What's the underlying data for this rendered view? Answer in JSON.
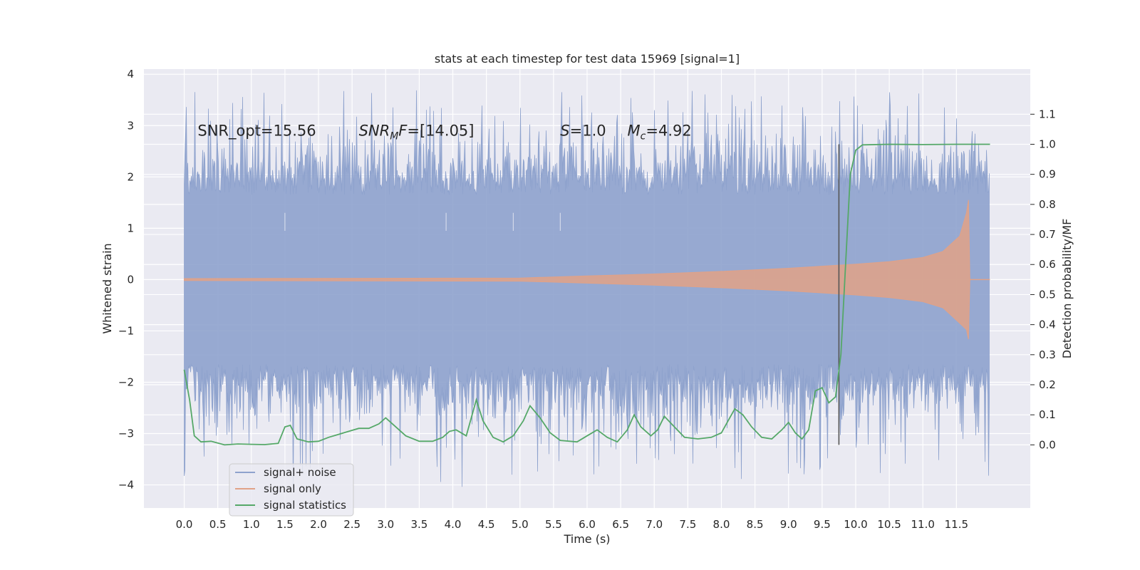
{
  "chart_data": {
    "type": "line",
    "title": "stats at each timestep for test data 15969 [signal=1]",
    "xlabel": "Time (s)",
    "ylabel": "Whitened strain",
    "y2label": "Detection probability/MF",
    "xlim": [
      -0.6,
      12.6
    ],
    "ylim": [
      -4.45,
      4.1
    ],
    "y2lim": [
      -0.21,
      1.25
    ],
    "xticks": [
      0.0,
      0.5,
      1.0,
      1.5,
      2.0,
      2.5,
      3.0,
      3.5,
      4.0,
      4.5,
      5.0,
      5.5,
      6.0,
      6.5,
      7.0,
      7.5,
      8.0,
      8.5,
      9.0,
      9.5,
      10.0,
      10.5,
      11.0,
      11.5
    ],
    "xtick_labels": [
      "0.0",
      "0.5",
      "1.0",
      "1.5",
      "2.0",
      "2.5",
      "3.0",
      "3.5",
      "4.0",
      "4.5",
      "5.0",
      "5.5",
      "6.0",
      "6.5",
      "7.0",
      "7.5",
      "8.0",
      "8.5",
      "9.0",
      "9.5",
      "10.0",
      "10.5",
      "11.0",
      "11.5"
    ],
    "yticks": [
      -4,
      -3,
      -2,
      -1,
      0,
      1,
      2,
      3,
      4
    ],
    "ytick_labels": [
      "−4",
      "−3",
      "−2",
      "−1",
      "0",
      "1",
      "2",
      "3",
      "4"
    ],
    "y2ticks": [
      0.0,
      0.1,
      0.2,
      0.3,
      0.4,
      0.5,
      0.6,
      0.7,
      0.8,
      0.9,
      1.0,
      1.1
    ],
    "y2tick_labels": [
      "0.0",
      "0.1",
      "0.2",
      "0.3",
      "0.4",
      "0.5",
      "0.6",
      "0.7",
      "0.8",
      "0.9",
      "1.0",
      "1.1"
    ],
    "grid": true,
    "legend_position": "bottom-left",
    "annotations": {
      "snr_opt": "SNR_opt=15.56",
      "snr_mf_main": "SNR",
      "snr_mf_sub": "M",
      "snr_mf_rest": "F=[14.05]",
      "s_main": "S",
      "s_rest": "=1.0",
      "mc_main": "M",
      "mc_sub": "c",
      "mc_rest": "=4.92"
    },
    "vertical_line_x": 9.75,
    "series": [
      {
        "name": "signal+ noise",
        "color": "#8ea2cd",
        "x_range": [
          0.0,
          12.0
        ],
        "envelope_typical": 1.65,
        "envelope_peak": 3.7,
        "envelope_min": -4.1
      },
      {
        "name": "signal only",
        "color": "#e1a287",
        "envelope": [
          [
            0.0,
            0.02
          ],
          [
            5.0,
            0.03
          ],
          [
            6.0,
            0.07
          ],
          [
            7.0,
            0.11
          ],
          [
            8.0,
            0.16
          ],
          [
            9.0,
            0.22
          ],
          [
            10.0,
            0.3
          ],
          [
            10.5,
            0.35
          ],
          [
            11.0,
            0.43
          ],
          [
            11.3,
            0.55
          ],
          [
            11.55,
            0.85
          ],
          [
            11.65,
            1.3
          ],
          [
            11.68,
            1.55
          ],
          [
            11.7,
            0.0
          ]
        ]
      },
      {
        "name": "signal statistics",
        "color": "#55a868",
        "axis": "right",
        "points": [
          [
            0.0,
            0.25
          ],
          [
            0.08,
            0.15
          ],
          [
            0.15,
            0.03
          ],
          [
            0.25,
            0.01
          ],
          [
            0.4,
            0.012
          ],
          [
            0.6,
            0.0
          ],
          [
            0.8,
            0.003
          ],
          [
            1.0,
            0.002
          ],
          [
            1.2,
            0.001
          ],
          [
            1.4,
            0.005
          ],
          [
            1.5,
            0.06
          ],
          [
            1.58,
            0.065
          ],
          [
            1.68,
            0.02
          ],
          [
            1.85,
            0.01
          ],
          [
            2.0,
            0.012
          ],
          [
            2.15,
            0.025
          ],
          [
            2.3,
            0.035
          ],
          [
            2.45,
            0.045
          ],
          [
            2.6,
            0.055
          ],
          [
            2.75,
            0.055
          ],
          [
            2.9,
            0.07
          ],
          [
            3.0,
            0.09
          ],
          [
            3.15,
            0.06
          ],
          [
            3.3,
            0.03
          ],
          [
            3.5,
            0.012
          ],
          [
            3.7,
            0.012
          ],
          [
            3.85,
            0.025
          ],
          [
            3.95,
            0.045
          ],
          [
            4.05,
            0.05
          ],
          [
            4.2,
            0.03
          ],
          [
            4.35,
            0.15
          ],
          [
            4.45,
            0.08
          ],
          [
            4.6,
            0.025
          ],
          [
            4.75,
            0.01
          ],
          [
            4.9,
            0.03
          ],
          [
            5.05,
            0.08
          ],
          [
            5.15,
            0.13
          ],
          [
            5.3,
            0.09
          ],
          [
            5.45,
            0.04
          ],
          [
            5.6,
            0.015
          ],
          [
            5.85,
            0.01
          ],
          [
            6.0,
            0.03
          ],
          [
            6.15,
            0.05
          ],
          [
            6.3,
            0.025
          ],
          [
            6.45,
            0.01
          ],
          [
            6.6,
            0.05
          ],
          [
            6.7,
            0.1
          ],
          [
            6.8,
            0.06
          ],
          [
            6.95,
            0.03
          ],
          [
            7.05,
            0.05
          ],
          [
            7.15,
            0.095
          ],
          [
            7.3,
            0.06
          ],
          [
            7.45,
            0.025
          ],
          [
            7.65,
            0.02
          ],
          [
            7.85,
            0.025
          ],
          [
            8.0,
            0.04
          ],
          [
            8.1,
            0.08
          ],
          [
            8.2,
            0.12
          ],
          [
            8.32,
            0.1
          ],
          [
            8.45,
            0.06
          ],
          [
            8.6,
            0.025
          ],
          [
            8.75,
            0.02
          ],
          [
            8.9,
            0.05
          ],
          [
            9.0,
            0.075
          ],
          [
            9.1,
            0.04
          ],
          [
            9.2,
            0.02
          ],
          [
            9.3,
            0.05
          ],
          [
            9.4,
            0.18
          ],
          [
            9.5,
            0.19
          ],
          [
            9.6,
            0.14
          ],
          [
            9.7,
            0.16
          ],
          [
            9.78,
            0.3
          ],
          [
            9.85,
            0.6
          ],
          [
            9.92,
            0.9
          ],
          [
            10.0,
            0.98
          ],
          [
            10.1,
            0.998
          ],
          [
            10.5,
            1.0
          ],
          [
            11.0,
            0.999
          ],
          [
            11.5,
            1.0
          ],
          [
            12.0,
            1.0
          ]
        ]
      }
    ]
  }
}
